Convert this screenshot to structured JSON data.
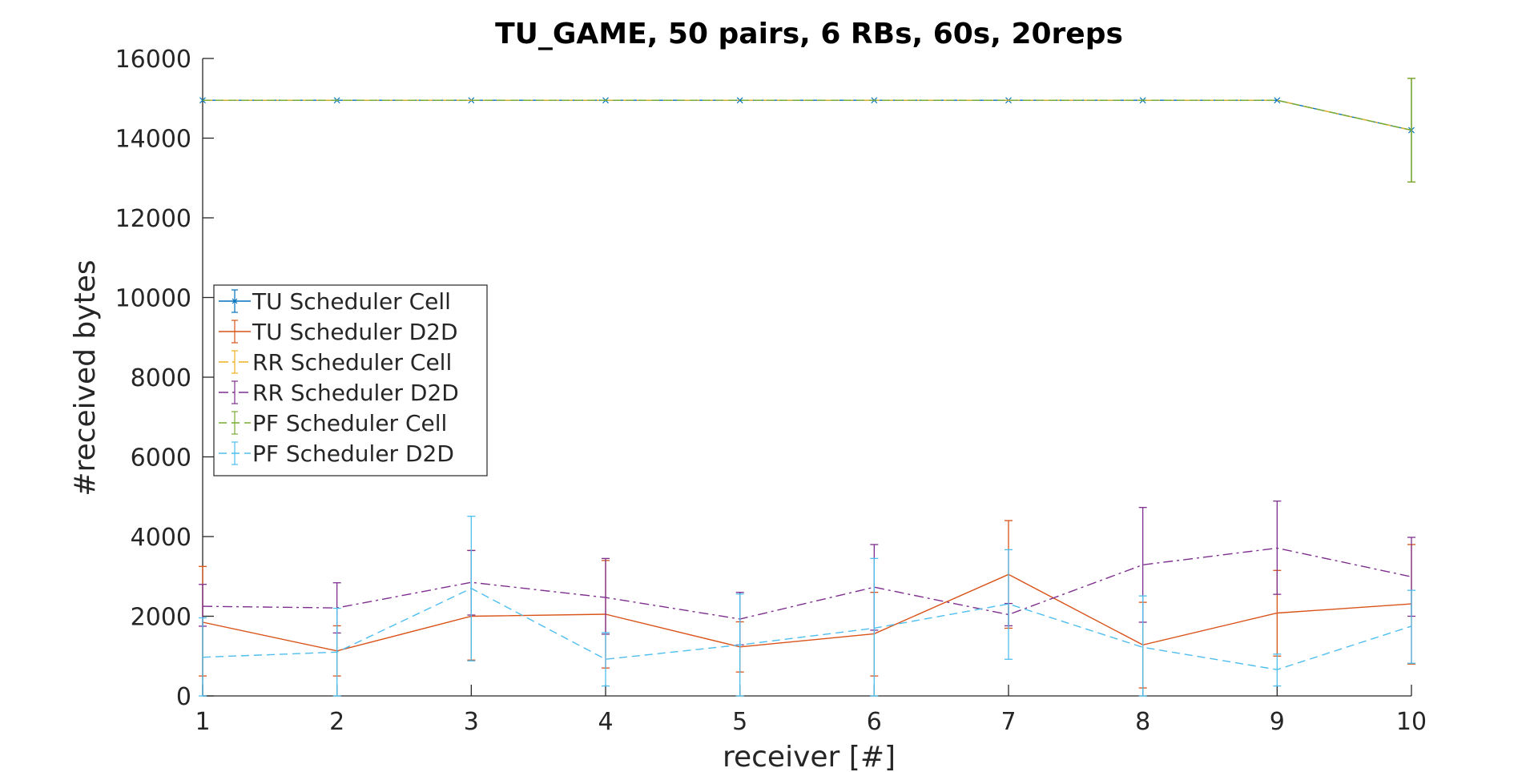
{
  "chart_data": {
    "type": "line",
    "title": "TU_GAME, 50 pairs, 6 RBs, 60s, 20reps",
    "xlabel": "receiver [#]",
    "ylabel": "#received bytes",
    "xlim": [
      1,
      10
    ],
    "ylim": [
      0,
      16000
    ],
    "xticks": [
      1,
      2,
      3,
      4,
      5,
      6,
      7,
      8,
      9,
      10
    ],
    "yticks": [
      0,
      2000,
      4000,
      6000,
      8000,
      10000,
      12000,
      14000,
      16000
    ],
    "x": [
      1,
      2,
      3,
      4,
      5,
      6,
      7,
      8,
      9,
      10
    ],
    "legend_position": "left",
    "grid": false,
    "series": [
      {
        "name": "TU Scheduler Cell",
        "color": "#0072BD",
        "dash": "solid",
        "marker": "x",
        "values": [
          14950,
          14950,
          14950,
          14950,
          14950,
          14950,
          14950,
          14950,
          14950,
          14200
        ],
        "error_low": [
          14950,
          14950,
          14950,
          14950,
          14950,
          14950,
          14950,
          14950,
          14950,
          12900
        ],
        "error_high": [
          14950,
          14950,
          14950,
          14950,
          14950,
          14950,
          14950,
          14950,
          14950,
          15500
        ]
      },
      {
        "name": "TU Scheduler D2D",
        "color": "#D95319",
        "dash": "solid",
        "marker": "none",
        "values": [
          1850,
          1130,
          2000,
          2050,
          1230,
          1560,
          3050,
          1280,
          2080,
          2310
        ],
        "error_low": [
          500,
          500,
          900,
          700,
          600,
          500,
          1700,
          200,
          1000,
          800
        ],
        "error_high": [
          3250,
          1760,
          3650,
          3400,
          1860,
          2600,
          4400,
          2350,
          3150,
          3800
        ]
      },
      {
        "name": "RR Scheduler Cell",
        "color": "#EDB120",
        "dash": "dashdot",
        "marker": "none",
        "values": [
          14950,
          14950,
          14950,
          14950,
          14950,
          14950,
          14950,
          14950,
          14950,
          14200
        ],
        "error_low": [
          14950,
          14950,
          14950,
          14950,
          14950,
          14950,
          14950,
          14950,
          14950,
          12900
        ],
        "error_high": [
          14950,
          14950,
          14950,
          14950,
          14950,
          14950,
          14950,
          14950,
          14950,
          15500
        ]
      },
      {
        "name": "RR Scheduler D2D",
        "color": "#7E2F8E",
        "dash": "dashdot",
        "marker": "none",
        "values": [
          2250,
          2210,
          2850,
          2470,
          1930,
          2730,
          2040,
          3290,
          3710,
          2990
        ],
        "error_low": [
          1750,
          1580,
          2030,
          1550,
          1280,
          1650,
          1760,
          1850,
          2550,
          2000
        ],
        "error_high": [
          2800,
          2840,
          3650,
          3450,
          2600,
          3800,
          2320,
          4730,
          4890,
          3980
        ]
      },
      {
        "name": "PF Scheduler Cell",
        "color": "#77AC30",
        "dash": "dashed",
        "marker": "none",
        "values": [
          14950,
          14950,
          14950,
          14950,
          14950,
          14950,
          14950,
          14950,
          14950,
          14200
        ],
        "error_low": [
          14950,
          14950,
          14950,
          14950,
          14950,
          14950,
          14950,
          14950,
          14950,
          12900
        ],
        "error_high": [
          14950,
          14950,
          14950,
          14950,
          14950,
          14950,
          14950,
          14950,
          14950,
          15500
        ]
      },
      {
        "name": "PF Scheduler D2D",
        "color": "#4DBEEE",
        "dash": "dashed",
        "marker": "none",
        "values": [
          970,
          1100,
          2700,
          920,
          1280,
          1700,
          2310,
          1220,
          660,
          1750
        ],
        "error_low": [
          0,
          0,
          880,
          250,
          0,
          0,
          920,
          0,
          250,
          820
        ],
        "error_high": [
          1960,
          2200,
          4510,
          1590,
          2560,
          3450,
          3670,
          2510,
          1050,
          2650
        ]
      }
    ]
  }
}
